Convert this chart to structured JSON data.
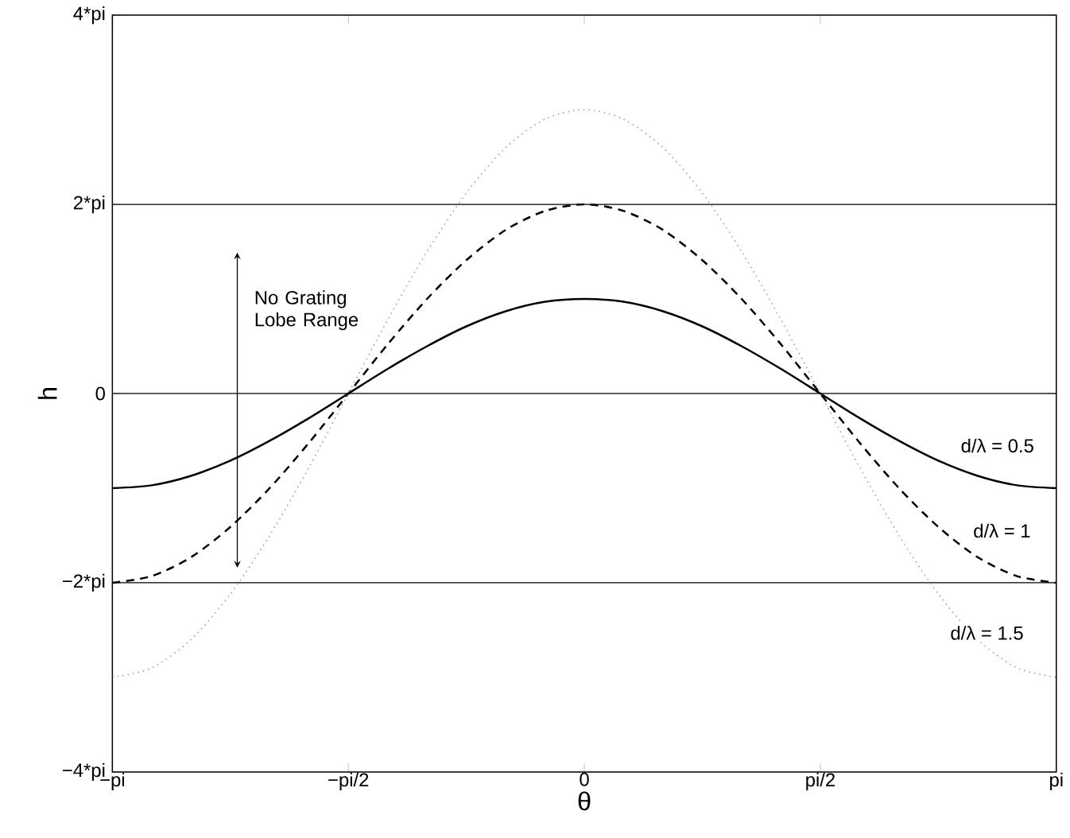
{
  "chart_data": {
    "type": "line",
    "xlabel": "θ",
    "ylabel": "h",
    "x": [
      -3.1416,
      -2.8798,
      -2.618,
      -2.3562,
      -2.0944,
      -1.8326,
      -1.5708,
      -1.309,
      -1.0472,
      -0.7854,
      -0.5236,
      -0.2618,
      0,
      0.2618,
      0.5236,
      0.7854,
      1.0472,
      1.309,
      1.5708,
      1.8326,
      2.0944,
      2.3562,
      2.618,
      2.8798,
      3.1416
    ],
    "series": [
      {
        "name": "d/λ = 0.5",
        "color": "#000000",
        "line_style": "solid",
        "values": [
          -1,
          -0.97,
          -0.87,
          -0.71,
          -0.5,
          -0.26,
          0,
          0.26,
          0.5,
          0.71,
          0.87,
          0.97,
          1,
          0.97,
          0.87,
          0.71,
          0.5,
          0.26,
          0,
          -0.26,
          -0.5,
          -0.71,
          -0.87,
          -0.97,
          -1
        ]
      },
      {
        "name": "d/λ = 1",
        "color": "#000000",
        "line_style": "dashed",
        "values": [
          -2,
          -1.93,
          -1.73,
          -1.41,
          -1,
          -0.52,
          0,
          0.52,
          1,
          1.41,
          1.73,
          1.93,
          2,
          1.93,
          1.73,
          1.41,
          1,
          0.52,
          0,
          -0.52,
          -1,
          -1.41,
          -1.73,
          -1.93,
          -2
        ]
      },
      {
        "name": "d/λ = 1.5",
        "color": "#999999",
        "line_style": "dotted",
        "values": [
          -3,
          -2.9,
          -2.6,
          -2.12,
          -1.5,
          -0.78,
          0,
          0.78,
          1.5,
          2.12,
          2.6,
          2.9,
          3,
          2.9,
          2.6,
          2.12,
          1.5,
          0.78,
          0,
          -0.78,
          -1.5,
          -2.12,
          -2.6,
          -2.9,
          -3
        ]
      }
    ],
    "xlim": [
      -3.1416,
      3.1416
    ],
    "xticks": [
      {
        "value": -3.1416,
        "label": "−pi"
      },
      {
        "value": -1.5708,
        "label": "−pi/2"
      },
      0,
      {
        "value": 1.5708,
        "label": "pi/2"
      },
      {
        "value": 3.1416,
        "label": "pi"
      }
    ],
    "ylim": [
      -4,
      4
    ],
    "yticks": [
      {
        "value": -4,
        "label": "−4*pi"
      },
      {
        "value": -2,
        "label": "−2*pi"
      },
      0,
      {
        "value": 2,
        "label": "2*pi"
      },
      {
        "value": 4,
        "label": "4*pi"
      }
    ],
    "ref_lines": [
      {
        "axis": "y",
        "value": 2,
        "color": "#000000"
      },
      {
        "axis": "y",
        "value": 0,
        "color": "#000000"
      },
      {
        "axis": "y",
        "value": -2,
        "color": "#000000"
      }
    ],
    "annotations": [
      "No Grating Lobe Range"
    ],
    "grid": false,
    "legend": false
  }
}
